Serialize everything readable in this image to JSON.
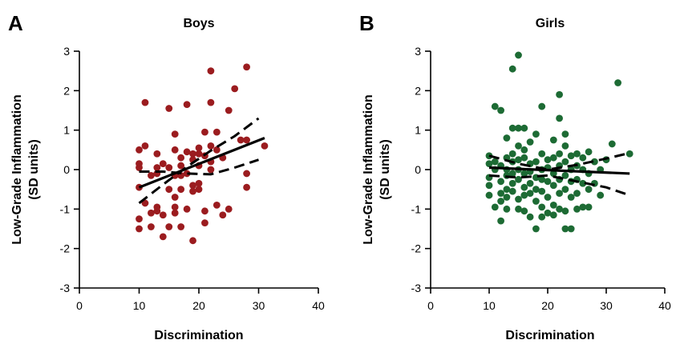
{
  "chart_data": [
    {
      "type": "scatter",
      "panel_label": "A",
      "title": "Boys",
      "xlabel": "Discrimination",
      "ylabel": "Low-Grade Inflammation",
      "ylabel_units": "(SD units)",
      "xlim": [
        0,
        40
      ],
      "ylim": [
        -3,
        3
      ],
      "xticks": [
        "0",
        "10",
        "20",
        "30",
        "40"
      ],
      "yticks": [
        "-3",
        "-2",
        "-1",
        "0",
        "1",
        "2",
        "3"
      ],
      "point_color": "#9b1c1f",
      "fit": {
        "x0": 10,
        "y0": -0.45,
        "x1": 31,
        "y1": 0.8
      },
      "ci_upper": [
        [
          10,
          -0.85
        ],
        [
          14,
          -0.38
        ],
        [
          18,
          0.07
        ],
        [
          22,
          0.48
        ],
        [
          26,
          0.85
        ],
        [
          30,
          1.3
        ]
      ],
      "ci_lower": [
        [
          10,
          -0.05
        ],
        [
          14,
          -0.05
        ],
        [
          18,
          -0.1
        ],
        [
          22,
          -0.12
        ],
        [
          26,
          0.05
        ],
        [
          30,
          0.25
        ]
      ],
      "points": [
        [
          10,
          -1.5
        ],
        [
          10,
          -1.25
        ],
        [
          10,
          -0.45
        ],
        [
          10,
          0.05
        ],
        [
          10,
          0.15
        ],
        [
          10,
          0.5
        ],
        [
          11,
          1.7
        ],
        [
          11,
          0.6
        ],
        [
          11,
          -0.85
        ],
        [
          12,
          -0.15
        ],
        [
          12,
          -1.45
        ],
        [
          12,
          -1.1
        ],
        [
          13,
          -0.1
        ],
        [
          13,
          0.4
        ],
        [
          13,
          0.05
        ],
        [
          13,
          -1.05
        ],
        [
          13,
          -0.95
        ],
        [
          14,
          0.15
        ],
        [
          14,
          -1.15
        ],
        [
          14,
          -1.7
        ],
        [
          15,
          0.05
        ],
        [
          15,
          -0.5
        ],
        [
          15,
          -1.45
        ],
        [
          15,
          1.55
        ],
        [
          16,
          0.9
        ],
        [
          16,
          -0.15
        ],
        [
          16,
          -0.7
        ],
        [
          16,
          -0.95
        ],
        [
          16,
          -1.1
        ],
        [
          16,
          0.5
        ],
        [
          17,
          0.3
        ],
        [
          17,
          0.1
        ],
        [
          17,
          -0.15
        ],
        [
          17,
          -0.5
        ],
        [
          17,
          -1.45
        ],
        [
          18,
          0.45
        ],
        [
          18,
          1.65
        ],
        [
          18,
          -0.1
        ],
        [
          18,
          -1.0
        ],
        [
          19,
          0.4
        ],
        [
          19,
          0.25
        ],
        [
          19,
          -0.4
        ],
        [
          19,
          -0.55
        ],
        [
          19,
          -1.8
        ],
        [
          20,
          0.55
        ],
        [
          20,
          0.4
        ],
        [
          20,
          0.1
        ],
        [
          20,
          -0.35
        ],
        [
          20,
          -0.5
        ],
        [
          21,
          0.35
        ],
        [
          21,
          0.95
        ],
        [
          21,
          -1.05
        ],
        [
          21,
          -1.35
        ],
        [
          22,
          0.0
        ],
        [
          22,
          0.2
        ],
        [
          22,
          0.6
        ],
        [
          22,
          2.5
        ],
        [
          22,
          1.7
        ],
        [
          23,
          0.95
        ],
        [
          23,
          0.5
        ],
        [
          23,
          -0.9
        ],
        [
          24,
          -1.15
        ],
        [
          24,
          0.3
        ],
        [
          25,
          -1.0
        ],
        [
          25,
          1.5
        ],
        [
          26,
          2.05
        ],
        [
          27,
          0.75
        ],
        [
          28,
          2.6
        ],
        [
          28,
          0.75
        ],
        [
          28,
          -0.45
        ],
        [
          28,
          -0.1
        ],
        [
          31,
          0.6
        ]
      ]
    },
    {
      "type": "scatter",
      "panel_label": "B",
      "title": "Girls",
      "xlabel": "Discrimination",
      "ylabel": "Low-Grade Inflammation",
      "ylabel_units": "(SD units)",
      "xlim": [
        0,
        40
      ],
      "ylim": [
        -3,
        3
      ],
      "xticks": [
        "0",
        "10",
        "20",
        "30",
        "40"
      ],
      "yticks": [
        "-3",
        "-2",
        "-1",
        "0",
        "1",
        "2",
        "3"
      ],
      "point_color": "#1d6b34",
      "fit": {
        "x0": 10,
        "y0": 0.05,
        "x1": 34,
        "y1": -0.1
      },
      "ci_upper": [
        [
          10,
          0.35
        ],
        [
          15,
          0.15
        ],
        [
          20,
          0.0
        ],
        [
          25,
          0.12
        ],
        [
          30,
          0.28
        ],
        [
          34,
          0.42
        ]
      ],
      "ci_lower": [
        [
          10,
          -0.15
        ],
        [
          15,
          -0.2
        ],
        [
          20,
          -0.15
        ],
        [
          25,
          -0.3
        ],
        [
          30,
          -0.45
        ],
        [
          34,
          -0.65
        ]
      ],
      "points": [
        [
          10,
          0.35
        ],
        [
          10,
          0.15
        ],
        [
          10,
          -0.2
        ],
        [
          10,
          -0.4
        ],
        [
          10,
          -0.65
        ],
        [
          11,
          0.2
        ],
        [
          11,
          -0.95
        ],
        [
          11,
          1.6
        ],
        [
          11,
          0.0
        ],
        [
          12,
          0.1
        ],
        [
          12,
          -0.3
        ],
        [
          12,
          -0.6
        ],
        [
          12,
          -0.8
        ],
        [
          12,
          1.5
        ],
        [
          12,
          -1.3
        ],
        [
          13,
          0.8
        ],
        [
          13,
          0.3
        ],
        [
          13,
          0.0
        ],
        [
          13,
          -0.15
        ],
        [
          13,
          -0.5
        ],
        [
          13,
          -0.7
        ],
        [
          13,
          -1.0
        ],
        [
          14,
          2.55
        ],
        [
          14,
          1.05
        ],
        [
          14,
          0.4
        ],
        [
          14,
          0.2
        ],
        [
          14,
          -0.1
        ],
        [
          14,
          -0.35
        ],
        [
          14,
          -0.55
        ],
        [
          15,
          2.9
        ],
        [
          15,
          1.05
        ],
        [
          15,
          0.6
        ],
        [
          15,
          0.25
        ],
        [
          15,
          0.0
        ],
        [
          15,
          -0.25
        ],
        [
          15,
          -0.75
        ],
        [
          15,
          -1.0
        ],
        [
          16,
          1.05
        ],
        [
          16,
          0.5
        ],
        [
          16,
          0.3
        ],
        [
          16,
          -0.1
        ],
        [
          16,
          -0.45
        ],
        [
          16,
          -0.65
        ],
        [
          16,
          -1.05
        ],
        [
          17,
          0.7
        ],
        [
          17,
          0.15
        ],
        [
          17,
          -0.05
        ],
        [
          17,
          -0.35
        ],
        [
          17,
          -0.6
        ],
        [
          17,
          -1.2
        ],
        [
          18,
          0.9
        ],
        [
          18,
          0.2
        ],
        [
          18,
          -0.2
        ],
        [
          18,
          -0.5
        ],
        [
          18,
          -0.8
        ],
        [
          18,
          -1.5
        ],
        [
          19,
          1.6
        ],
        [
          19,
          0.4
        ],
        [
          19,
          0.0
        ],
        [
          19,
          -0.25
        ],
        [
          19,
          -0.55
        ],
        [
          19,
          -0.95
        ],
        [
          19,
          -1.2
        ],
        [
          20,
          0.25
        ],
        [
          20,
          0.05
        ],
        [
          20,
          -0.3
        ],
        [
          20,
          -0.7
        ],
        [
          20,
          -1.1
        ],
        [
          21,
          0.75
        ],
        [
          21,
          0.3
        ],
        [
          21,
          -0.1
        ],
        [
          21,
          -0.4
        ],
        [
          21,
          -0.9
        ],
        [
          21,
          -1.15
        ],
        [
          22,
          1.9
        ],
        [
          22,
          1.3
        ],
        [
          22,
          0.4
        ],
        [
          22,
          0.1
        ],
        [
          22,
          -0.25
        ],
        [
          22,
          -0.6
        ],
        [
          22,
          -1.0
        ],
        [
          23,
          0.9
        ],
        [
          23,
          0.6
        ],
        [
          23,
          0.2
        ],
        [
          23,
          -0.15
        ],
        [
          23,
          -0.5
        ],
        [
          23,
          -1.05
        ],
        [
          23,
          -1.5
        ],
        [
          24,
          0.35
        ],
        [
          24,
          0.0
        ],
        [
          24,
          -0.3
        ],
        [
          24,
          -0.7
        ],
        [
          24,
          -1.5
        ],
        [
          25,
          0.4
        ],
        [
          25,
          0.1
        ],
        [
          25,
          -0.25
        ],
        [
          25,
          -0.6
        ],
        [
          25,
          -1.0
        ],
        [
          26,
          0.3
        ],
        [
          26,
          0.0
        ],
        [
          26,
          -0.35
        ],
        [
          26,
          -0.95
        ],
        [
          27,
          0.45
        ],
        [
          27,
          -0.1
        ],
        [
          27,
          -0.5
        ],
        [
          27,
          -0.95
        ],
        [
          28,
          0.2
        ],
        [
          28,
          -0.35
        ],
        [
          29,
          0.0
        ],
        [
          29,
          -0.65
        ],
        [
          30,
          0.25
        ],
        [
          31,
          0.65
        ],
        [
          32,
          2.2
        ],
        [
          34,
          0.4
        ]
      ]
    }
  ]
}
